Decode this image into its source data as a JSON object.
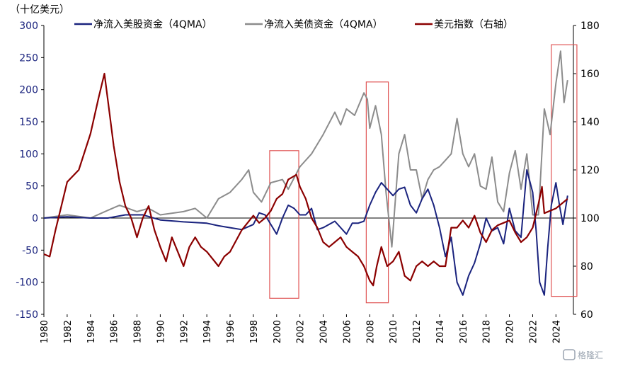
{
  "chart_data": {
    "type": "line",
    "unit_label": "（十亿美元）",
    "x_range": [
      1980,
      2025.5
    ],
    "x_ticks": [
      "1980",
      "1982",
      "1984",
      "1986",
      "1988",
      "1990",
      "1992",
      "1994",
      "1996",
      "1998",
      "2000",
      "2002",
      "2004",
      "2006",
      "2008",
      "2010",
      "2012",
      "2014",
      "2016",
      "2018",
      "2020",
      "2022",
      "2024"
    ],
    "y_left": {
      "range": [
        -150,
        300
      ],
      "ticks": [
        "300",
        "250",
        "200",
        "150",
        "100",
        "50",
        "0",
        "-50",
        "-100",
        "-150"
      ]
    },
    "y_right": {
      "range": [
        60,
        180
      ],
      "ticks": [
        "180",
        "160",
        "140",
        "120",
        "100",
        "80",
        "60"
      ]
    },
    "grid": false,
    "legend_position": "top",
    "colors": {
      "equity": "#1a237e",
      "bond": "#8c8c8c",
      "usd": "#8b0000",
      "highlight": "#e05555",
      "left_axis_text": "#1a237e",
      "right_axis_text": "#000000"
    },
    "series": [
      {
        "name": "净流入美股资金（4QMA）",
        "axis": "left",
        "points": [
          [
            1980,
            0
          ],
          [
            1982,
            2
          ],
          [
            1984,
            0
          ],
          [
            1985.5,
            0
          ],
          [
            1987,
            5
          ],
          [
            1988.5,
            5
          ],
          [
            1990,
            -3
          ],
          [
            1992,
            -6
          ],
          [
            1994,
            -8
          ],
          [
            1995,
            -12
          ],
          [
            1996,
            -15
          ],
          [
            1997,
            -18
          ],
          [
            1998,
            -10
          ],
          [
            1998.5,
            8
          ],
          [
            1999,
            5
          ],
          [
            1999.5,
            -10
          ],
          [
            2000,
            -25
          ],
          [
            2000.5,
            0
          ],
          [
            2001,
            20
          ],
          [
            2001.5,
            15
          ],
          [
            2002,
            5
          ],
          [
            2002.5,
            5
          ],
          [
            2003,
            15
          ],
          [
            2003.3,
            -5
          ],
          [
            2003.5,
            -18
          ],
          [
            2004,
            -15
          ],
          [
            2005,
            -5
          ],
          [
            2006,
            -25
          ],
          [
            2006.5,
            -8
          ],
          [
            2007,
            -8
          ],
          [
            2007.5,
            -5
          ],
          [
            2008,
            20
          ],
          [
            2008.5,
            40
          ],
          [
            2009,
            55
          ],
          [
            2009.5,
            45
          ],
          [
            2010,
            35
          ],
          [
            2010.5,
            45
          ],
          [
            2011,
            48
          ],
          [
            2011.5,
            20
          ],
          [
            2012,
            8
          ],
          [
            2012.5,
            30
          ],
          [
            2013,
            45
          ],
          [
            2013.5,
            20
          ],
          [
            2014,
            -15
          ],
          [
            2014.5,
            -60
          ],
          [
            2015,
            -30
          ],
          [
            2015.5,
            -100
          ],
          [
            2016,
            -120
          ],
          [
            2016.5,
            -90
          ],
          [
            2017,
            -70
          ],
          [
            2017.5,
            -40
          ],
          [
            2018,
            0
          ],
          [
            2018.5,
            -20
          ],
          [
            2019,
            -15
          ],
          [
            2019.5,
            -40
          ],
          [
            2020,
            15
          ],
          [
            2020.5,
            -20
          ],
          [
            2021,
            -30
          ],
          [
            2021.5,
            75
          ],
          [
            2022,
            40
          ],
          [
            2022.3,
            -20
          ],
          [
            2022.6,
            -100
          ],
          [
            2023,
            -120
          ],
          [
            2023.3,
            -45
          ],
          [
            2023.6,
            20
          ],
          [
            2024,
            55
          ],
          [
            2024.3,
            20
          ],
          [
            2024.6,
            -10
          ],
          [
            2025,
            35
          ]
        ]
      },
      {
        "name": "净流入美债资金（4QMA）",
        "axis": "left",
        "points": [
          [
            1980,
            0
          ],
          [
            1982,
            5
          ],
          [
            1984,
            0
          ],
          [
            1985.5,
            12
          ],
          [
            1986.5,
            20
          ],
          [
            1988,
            10
          ],
          [
            1989,
            15
          ],
          [
            1990,
            5
          ],
          [
            1992,
            10
          ],
          [
            1993,
            15
          ],
          [
            1994,
            0
          ],
          [
            1995,
            30
          ],
          [
            1996,
            40
          ],
          [
            1997,
            60
          ],
          [
            1997.6,
            75
          ],
          [
            1998,
            40
          ],
          [
            1998.7,
            25
          ],
          [
            1999.5,
            55
          ],
          [
            2000.5,
            60
          ],
          [
            2001,
            45
          ],
          [
            2002,
            80
          ],
          [
            2003,
            100
          ],
          [
            2004,
            130
          ],
          [
            2005,
            165
          ],
          [
            2005.5,
            145
          ],
          [
            2006,
            170
          ],
          [
            2006.7,
            160
          ],
          [
            2007.5,
            195
          ],
          [
            2007.8,
            185
          ],
          [
            2008,
            140
          ],
          [
            2008.5,
            175
          ],
          [
            2009,
            130
          ],
          [
            2009.4,
            40
          ],
          [
            2009.9,
            -45
          ],
          [
            2010.5,
            100
          ],
          [
            2011,
            130
          ],
          [
            2011.5,
            75
          ],
          [
            2012,
            75
          ],
          [
            2012.5,
            30
          ],
          [
            2013,
            60
          ],
          [
            2013.5,
            75
          ],
          [
            2014,
            80
          ],
          [
            2014.5,
            90
          ],
          [
            2015,
            100
          ],
          [
            2015.5,
            155
          ],
          [
            2016,
            100
          ],
          [
            2016.5,
            80
          ],
          [
            2017,
            100
          ],
          [
            2017.5,
            50
          ],
          [
            2018,
            45
          ],
          [
            2018.5,
            95
          ],
          [
            2019,
            25
          ],
          [
            2019.5,
            10
          ],
          [
            2020,
            70
          ],
          [
            2020.5,
            105
          ],
          [
            2021,
            45
          ],
          [
            2021.5,
            100
          ],
          [
            2022,
            5
          ],
          [
            2022.5,
            5
          ],
          [
            2023,
            170
          ],
          [
            2023.5,
            130
          ],
          [
            2024,
            210
          ],
          [
            2024.4,
            260
          ],
          [
            2024.7,
            180
          ],
          [
            2025,
            215
          ]
        ]
      },
      {
        "name": "美元指数（右轴）",
        "axis": "right",
        "points": [
          [
            1980,
            85
          ],
          [
            1980.5,
            84
          ],
          [
            1981,
            95
          ],
          [
            1981.5,
            105
          ],
          [
            1982,
            115
          ],
          [
            1983,
            120
          ],
          [
            1984,
            135
          ],
          [
            1984.7,
            150
          ],
          [
            1985.2,
            160
          ],
          [
            1985.6,
            145
          ],
          [
            1986,
            130
          ],
          [
            1986.5,
            115
          ],
          [
            1987,
            105
          ],
          [
            1987.5,
            100
          ],
          [
            1988,
            92
          ],
          [
            1988.5,
            100
          ],
          [
            1989,
            105
          ],
          [
            1989.5,
            95
          ],
          [
            1990,
            88
          ],
          [
            1990.5,
            82
          ],
          [
            1991,
            92
          ],
          [
            1991.5,
            86
          ],
          [
            1992,
            80
          ],
          [
            1992.5,
            88
          ],
          [
            1993,
            92
          ],
          [
            1993.5,
            88
          ],
          [
            1994,
            86
          ],
          [
            1995,
            80
          ],
          [
            1995.5,
            84
          ],
          [
            1996,
            86
          ],
          [
            1997,
            95
          ],
          [
            1997.5,
            98
          ],
          [
            1998,
            101
          ],
          [
            1998.5,
            98
          ],
          [
            1999,
            100
          ],
          [
            1999.5,
            103
          ],
          [
            2000,
            108
          ],
          [
            2000.5,
            110
          ],
          [
            2001,
            116
          ],
          [
            2001.7,
            118
          ],
          [
            2002,
            113
          ],
          [
            2002.5,
            108
          ],
          [
            2003,
            100
          ],
          [
            2003.5,
            96
          ],
          [
            2004,
            90
          ],
          [
            2004.5,
            88
          ],
          [
            2005,
            90
          ],
          [
            2005.5,
            92
          ],
          [
            2006,
            88
          ],
          [
            2006.5,
            86
          ],
          [
            2007,
            84
          ],
          [
            2007.5,
            80
          ],
          [
            2008,
            74
          ],
          [
            2008.3,
            72
          ],
          [
            2008.6,
            80
          ],
          [
            2009,
            88
          ],
          [
            2009.5,
            80
          ],
          [
            2010,
            82
          ],
          [
            2010.5,
            86
          ],
          [
            2011,
            76
          ],
          [
            2011.5,
            74
          ],
          [
            2012,
            80
          ],
          [
            2012.5,
            82
          ],
          [
            2013,
            80
          ],
          [
            2013.5,
            82
          ],
          [
            2014,
            80
          ],
          [
            2014.5,
            80
          ],
          [
            2015,
            96
          ],
          [
            2015.5,
            96
          ],
          [
            2016,
            99
          ],
          [
            2016.5,
            96
          ],
          [
            2017,
            101
          ],
          [
            2017.5,
            94
          ],
          [
            2018,
            90
          ],
          [
            2018.5,
            95
          ],
          [
            2019,
            97
          ],
          [
            2019.5,
            98
          ],
          [
            2020,
            99
          ],
          [
            2020.5,
            94
          ],
          [
            2021,
            90
          ],
          [
            2021.5,
            92
          ],
          [
            2022,
            96
          ],
          [
            2022.5,
            106
          ],
          [
            2022.8,
            113
          ],
          [
            2023,
            102
          ],
          [
            2023.5,
            103
          ],
          [
            2024,
            104
          ],
          [
            2024.5,
            106
          ],
          [
            2025,
            108
          ]
        ]
      }
    ],
    "highlight_boxes": [
      {
        "x": [
          1999.4,
          2001.9
        ],
        "y_left": [
          -125,
          105
        ]
      },
      {
        "x": [
          2007.7,
          2009.6
        ],
        "y_left": [
          -132,
          212
        ]
      },
      {
        "x": [
          2023.6,
          2025.8
        ],
        "y_left": [
          -122,
          270
        ]
      }
    ]
  },
  "watermark": {
    "text": "格隆汇",
    "icon": "logo-mark-icon"
  }
}
